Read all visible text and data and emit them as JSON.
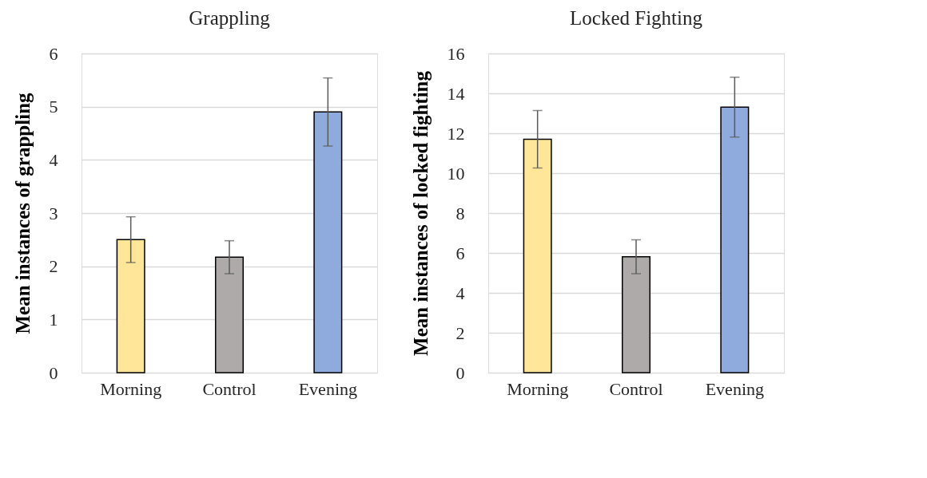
{
  "chart_data": [
    {
      "type": "bar",
      "title": "Grappling",
      "ylabel": "Mean instances of grappling",
      "categories": [
        "Morning",
        "Control",
        "Evening"
      ],
      "values": [
        2.5,
        2.17,
        4.9
      ],
      "colors": [
        "#ffe699",
        "#aeaaaa",
        "#8faadc"
      ],
      "errors": [
        0.43,
        0.31,
        0.64
      ],
      "ylim": [
        0,
        6
      ],
      "yticks": [
        0,
        1,
        2,
        3,
        4,
        5,
        6
      ],
      "grid": "y"
    },
    {
      "type": "bar",
      "title": "Locked Fighting",
      "ylabel": "Mean instances of locked fighting",
      "categories": [
        "Morning",
        "Control",
        "Evening"
      ],
      "values": [
        11.7,
        5.81,
        13.31
      ],
      "colors": [
        "#ffe699",
        "#aeaaaa",
        "#8faadc"
      ],
      "errors": [
        1.44,
        0.85,
        1.5
      ],
      "ylim": [
        0,
        16
      ],
      "yticks": [
        0,
        2,
        4,
        6,
        8,
        10,
        12,
        14,
        16
      ],
      "grid": "y"
    }
  ]
}
